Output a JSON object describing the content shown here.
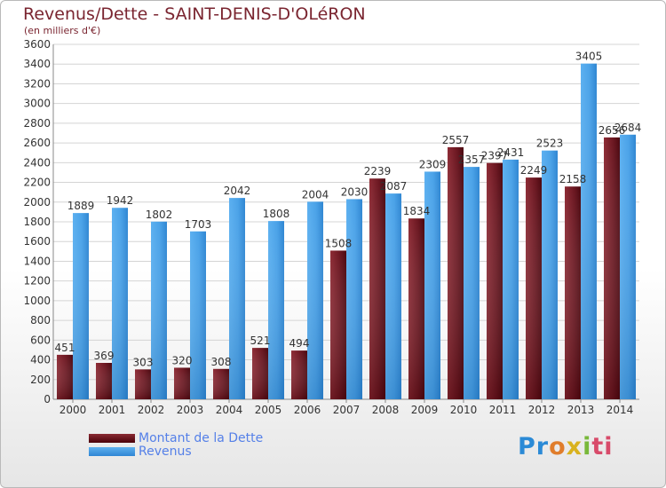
{
  "title": "Revenus/Dette - SAINT-DENIS-D'OLéRON",
  "subtitle": "(en milliers d'€)",
  "colors": {
    "debt": "#6e1a24",
    "revenue": "#4aa0e6",
    "text": "#7a2530"
  },
  "chart_data": {
    "type": "bar",
    "categories": [
      "2000",
      "2001",
      "2002",
      "2003",
      "2004",
      "2005",
      "2006",
      "2007",
      "2008",
      "2009",
      "2010",
      "2011",
      "2012",
      "2013",
      "2014"
    ],
    "series": [
      {
        "name": "Montant de la Dette",
        "values": [
          451,
          369,
          303,
          320,
          308,
          521,
          494,
          1508,
          2239,
          1834,
          2557,
          2397,
          2249,
          2158,
          2656
        ]
      },
      {
        "name": "Revenus",
        "values": [
          1889,
          1942,
          1802,
          1703,
          2042,
          1808,
          2004,
          2030,
          2087,
          2309,
          2357,
          2431,
          2523,
          3405,
          2684
        ]
      }
    ],
    "data_labels": {
      "debt": [
        "451",
        "369",
        "303",
        "320",
        "308",
        "521",
        "494",
        "1508",
        "2239",
        "1834",
        "2557",
        "2397",
        "2249",
        "2158",
        "2656"
      ],
      "revenue": [
        "1889",
        "1942",
        "1802",
        "1703",
        "2042",
        "1808",
        "2004",
        "2030",
        "2087",
        "2309",
        "2357",
        "2431",
        "2523",
        "3405",
        "2684"
      ]
    },
    "yticks": [
      "0",
      "200",
      "400",
      "600",
      "800",
      "1000",
      "1200",
      "1400",
      "1600",
      "1800",
      "2000",
      "2200",
      "2400",
      "2600",
      "2800",
      "3000",
      "3200",
      "3400",
      "3600"
    ],
    "ylim": [
      0,
      3600
    ],
    "grid": true,
    "legend_position": "bottom-left"
  },
  "legend": [
    {
      "label": "Montant de la Dette"
    },
    {
      "label": "Revenus"
    }
  ],
  "logo": {
    "p1": "Pr",
    "p2": "o",
    "p3": "x",
    "p4": "i",
    "p5": "ti"
  }
}
